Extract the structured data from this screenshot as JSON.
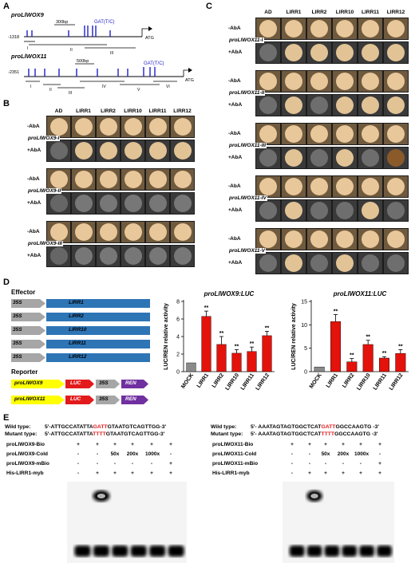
{
  "panels": {
    "a": "A",
    "b": "B",
    "c": "C",
    "d": "D",
    "e": "E"
  },
  "promoterA": {
    "p9": {
      "name": "proLlWOX9",
      "start": "-1318",
      "scale": "300bp",
      "motif": "GAT(T/C)",
      "atg": "ATG",
      "regions": [
        "I",
        "II",
        "III"
      ]
    },
    "p11": {
      "name": "proLlWOX11",
      "start": "-2351",
      "scale": "500bp",
      "motif": "GAT(T/C)",
      "atg": "ATG",
      "regions": [
        "I",
        "II",
        "III",
        "IV",
        "V",
        "VI"
      ]
    }
  },
  "y1h": {
    "columns": [
      "AD",
      "LlRR1",
      "LlRR2",
      "LlRR10",
      "LlRR11",
      "LlRR12"
    ],
    "conditions": [
      "-AbA",
      "+AbA"
    ],
    "b_rows": [
      "proLlWOX9-I",
      "proLlWOX9-II",
      "proLlWOX9-III"
    ],
    "c_rows": [
      "proLlWOX11-I",
      "proLlWOX11-II",
      "proLlWOX11-III",
      "proLlWOX11-IV",
      "proLlWOX11-V"
    ]
  },
  "effector": {
    "title": "Effector",
    "promoter": "35S",
    "genes": [
      "LlRR1",
      "LlRR2",
      "LlRR10",
      "LlRR11",
      "LlRR12"
    ]
  },
  "reporter": {
    "title": "Reporter",
    "rows": [
      {
        "promoter": "proLlWOX9",
        "luc": "LUC",
        "p35s": "35S",
        "ren": "REN"
      },
      {
        "promoter": "proLlWOX11",
        "luc": "LUC",
        "p35s": "35S",
        "ren": "REN"
      }
    ]
  },
  "colors": {
    "bar": "#e3120b",
    "mock": "#8a8a8a",
    "gene": "#2e75b6",
    "promoter": "#ffff00",
    "luc": "#e31a1c",
    "ren": "#7030a0",
    "arrow": "#a6a6a6",
    "motif": "#1f1fc6"
  },
  "chart_data": [
    {
      "type": "bar",
      "title": "proLlWOX9:LUC",
      "ylabel": "LUC/REN relative activity",
      "ylim": [
        0,
        8
      ],
      "yticks": [
        0,
        2,
        4,
        6,
        8
      ],
      "categories": [
        "MOCK",
        "LlRR1",
        "LlRR2",
        "LlRR10",
        "LlRR11",
        "LlRR12"
      ],
      "values": [
        1.0,
        6.3,
        3.1,
        2.1,
        2.3,
        4.1
      ],
      "errors": [
        0,
        0.6,
        0.9,
        0.4,
        0.5,
        0.5
      ],
      "significance": [
        "",
        "**",
        "**",
        "**",
        "**",
        "**"
      ]
    },
    {
      "type": "bar",
      "title": "proLlWOX11:LUC",
      "ylabel": "LUC/REN relative activity",
      "ylim": [
        0,
        15
      ],
      "yticks": [
        0,
        5,
        10,
        15
      ],
      "categories": [
        "MOCK",
        "LlRR1",
        "LlRR2",
        "LlRR10",
        "LlRR11",
        "LlRR12"
      ],
      "values": [
        1.0,
        10.7,
        2.1,
        5.8,
        2.9,
        3.9
      ],
      "errors": [
        0,
        1.5,
        0.7,
        0.9,
        0.3,
        0.8
      ],
      "significance": [
        "",
        "**",
        "**",
        "**",
        "**",
        "**"
      ]
    }
  ],
  "emsa": {
    "left": {
      "wt_label": "Wild type:",
      "wt_pre": "5'-ATTGCCATATTA",
      "wt_mid": "GATT",
      "wt_post": "GTAATGTCAGTTGG-3'",
      "mut_label": "Mutant type:",
      "mut_pre": "5'-ATTGCCATATTA",
      "mut_mid": "TTTT",
      "mut_post": "GTAATGTCAGTTGG-3'",
      "rows": [
        {
          "label": "proLlWOX9-Bio",
          "cells": [
            "+",
            "+",
            "+",
            "+",
            "+",
            "+"
          ]
        },
        {
          "label": "proLlWOX9-Cold",
          "cells": [
            "-",
            "-",
            "50x",
            "200x",
            "1000x",
            "-"
          ]
        },
        {
          "label": "proLlWOX9-mBio",
          "cells": [
            "-",
            "-",
            "-",
            "-",
            "-",
            "+"
          ]
        },
        {
          "label": "His-LlRR1-myb",
          "cells": [
            "-",
            "+",
            "+",
            "+",
            "+",
            "+"
          ]
        }
      ]
    },
    "right": {
      "wt_label": "Wild type:",
      "wt_pre": "5'- AAATAGTAGTGGCTCAT",
      "wt_mid": "GATT",
      "wt_post": "GGCCAAGTG -3'",
      "mut_label": "Mutant type:",
      "mut_pre": "5'- AAATAGTAGTGGCTCAT",
      "mut_mid": "TTTT",
      "mut_post": "GGCCAAGTG -3'",
      "rows": [
        {
          "label": "proLlWOX11-Bio",
          "cells": [
            "+",
            "+",
            "+",
            "+",
            "+",
            "+"
          ]
        },
        {
          "label": "proLlWOX11-Cold",
          "cells": [
            "-",
            "-",
            "50x",
            "200x",
            "1000x",
            "-"
          ]
        },
        {
          "label": "proLlWOX11-mBio",
          "cells": [
            "-",
            "-",
            "-",
            "-",
            "-",
            "+"
          ]
        },
        {
          "label": "His-LlRR1-myb",
          "cells": [
            "-",
            "+",
            "+",
            "+",
            "+",
            "+"
          ]
        }
      ]
    }
  }
}
